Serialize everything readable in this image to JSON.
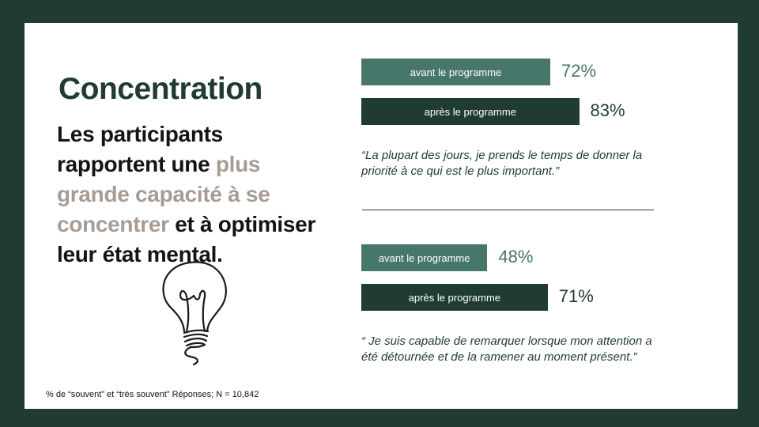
{
  "title": "Concentration",
  "headline": {
    "part1": "Les participants rapportent une ",
    "highlight": "plus grande capacité à se concentrer",
    "part2": " et à optimiser leur état mental."
  },
  "footnote": "% de “souvent” et “très souvent” Réponses; N = 10,842",
  "colors": {
    "background": "#1f3b33",
    "before": "#47766a",
    "after": "#1f3b33",
    "highlight": "#a79c94"
  },
  "icons": [
    "lightbulb-icon"
  ],
  "chart_data": [
    {
      "type": "bar",
      "orientation": "horizontal",
      "categories": [
        "avant le programme",
        "après le programme"
      ],
      "values": [
        72,
        83
      ],
      "value_labels": [
        "72%",
        "83%"
      ],
      "xlim": [
        0,
        100
      ],
      "quote": "“La plupart des jours, je prends le temps de donner la priorité à ce qui est le plus important.”"
    },
    {
      "type": "bar",
      "orientation": "horizontal",
      "categories": [
        "avant le programme",
        "après le programme"
      ],
      "values": [
        48,
        71
      ],
      "value_labels": [
        "48%",
        "71%"
      ],
      "xlim": [
        0,
        100
      ],
      "quote": "“ Je suis capable de remarquer lorsque mon attention a été détournée et de la ramener au moment présent.”"
    }
  ]
}
